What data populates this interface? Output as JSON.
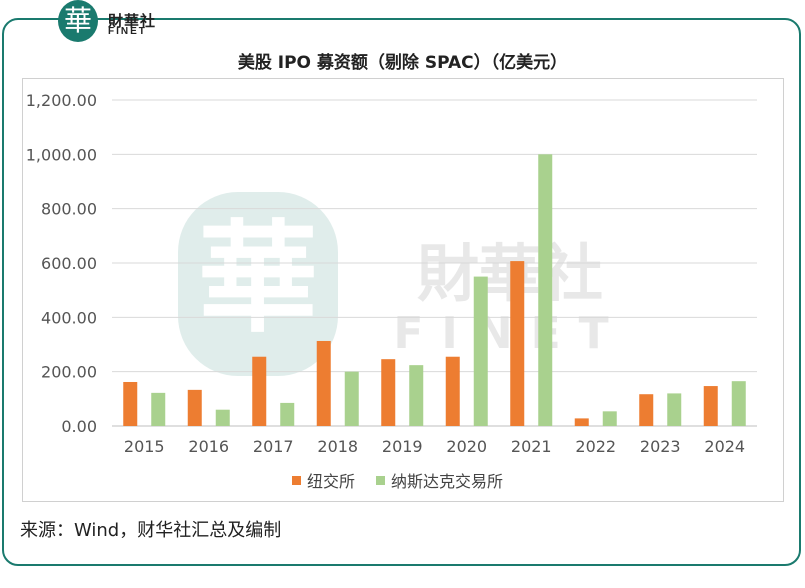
{
  "brand": {
    "logo_glyph": "華",
    "name_cn": "財華社",
    "name_en": "FINET",
    "color": "#1a7a6e"
  },
  "chart_data": {
    "type": "bar",
    "title": "美股 IPO 募资额（剔除 SPAC）（亿美元）",
    "categories": [
      "2015",
      "2016",
      "2017",
      "2018",
      "2019",
      "2020",
      "2021",
      "2022",
      "2023",
      "2024"
    ],
    "series": [
      {
        "name": "纽交所",
        "color": "#ed7d31",
        "values": [
          162,
          133,
          255,
          313,
          246,
          255,
          607,
          28,
          117,
          147
        ]
      },
      {
        "name": "纳斯达克交易所",
        "color": "#a9d18e",
        "values": [
          122,
          60,
          85,
          200,
          224,
          550,
          1000,
          54,
          120,
          165
        ]
      }
    ],
    "yticks": [
      "0.00",
      "200.00",
      "400.00",
      "600.00",
      "800.00",
      "1,000.00",
      "1,200.00"
    ],
    "ylim": [
      0,
      1200
    ],
    "grid": true,
    "legend_position": "bottom"
  },
  "source": "来源：Wind，财华社汇总及编制"
}
